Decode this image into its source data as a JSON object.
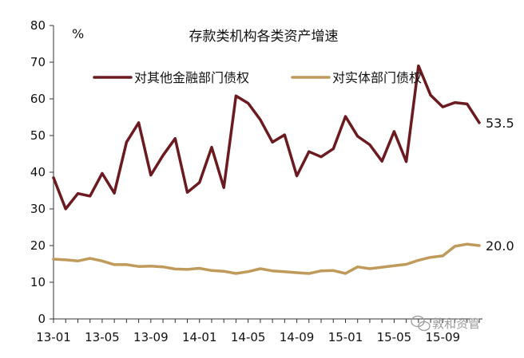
{
  "chart_data": {
    "type": "line",
    "title": "存款类机构各类资产增速",
    "ylabel": "%",
    "xlabel": "",
    "ylim": [
      0,
      80
    ],
    "yticks": [
      0,
      10,
      20,
      30,
      40,
      50,
      60,
      70,
      80
    ],
    "xtick_labels": [
      "13-01",
      "13-05",
      "13-09",
      "14-01",
      "14-05",
      "14-09",
      "15-01",
      "15-05",
      "15-09"
    ],
    "x": [
      "13-01",
      "13-02",
      "13-03",
      "13-04",
      "13-05",
      "13-06",
      "13-07",
      "13-08",
      "13-09",
      "13-10",
      "13-11",
      "13-12",
      "14-01",
      "14-02",
      "14-03",
      "14-04",
      "14-05",
      "14-06",
      "14-07",
      "14-08",
      "14-09",
      "14-10",
      "14-11",
      "14-12",
      "15-01",
      "15-02",
      "15-03",
      "15-04",
      "15-05",
      "15-06",
      "15-07",
      "15-08",
      "15-09",
      "15-10",
      "15-11",
      "15-12"
    ],
    "series": [
      {
        "name": "对其他金融部门债权",
        "color": "#6b1a1f",
        "values": [
          38.5,
          30.0,
          34.2,
          33.5,
          39.7,
          34.3,
          48.2,
          53.5,
          39.2,
          44.6,
          49.2,
          34.5,
          37.2,
          46.8,
          35.8,
          60.8,
          58.8,
          54.3,
          48.2,
          50.2,
          39.0,
          45.6,
          44.2,
          46.4,
          55.2,
          49.8,
          47.5,
          43.0,
          51.1,
          42.9,
          69.0,
          61.0,
          57.8,
          59.0,
          58.6,
          53.5
        ],
        "end_label": "53.5"
      },
      {
        "name": "对实体部门债权",
        "color": "#c09a5b",
        "values": [
          16.3,
          16.1,
          15.8,
          16.5,
          15.8,
          14.8,
          14.8,
          14.3,
          14.4,
          14.2,
          13.6,
          13.5,
          13.8,
          13.2,
          13.0,
          12.4,
          12.9,
          13.7,
          13.1,
          12.9,
          12.6,
          12.4,
          13.1,
          13.2,
          12.4,
          14.2,
          13.7,
          14.1,
          14.5,
          14.9,
          16.0,
          16.8,
          17.2,
          19.8,
          20.4,
          20.0
        ],
        "end_label": "20.0"
      }
    ],
    "legend": "top",
    "grid": false
  },
  "watermark": "敦和资管"
}
